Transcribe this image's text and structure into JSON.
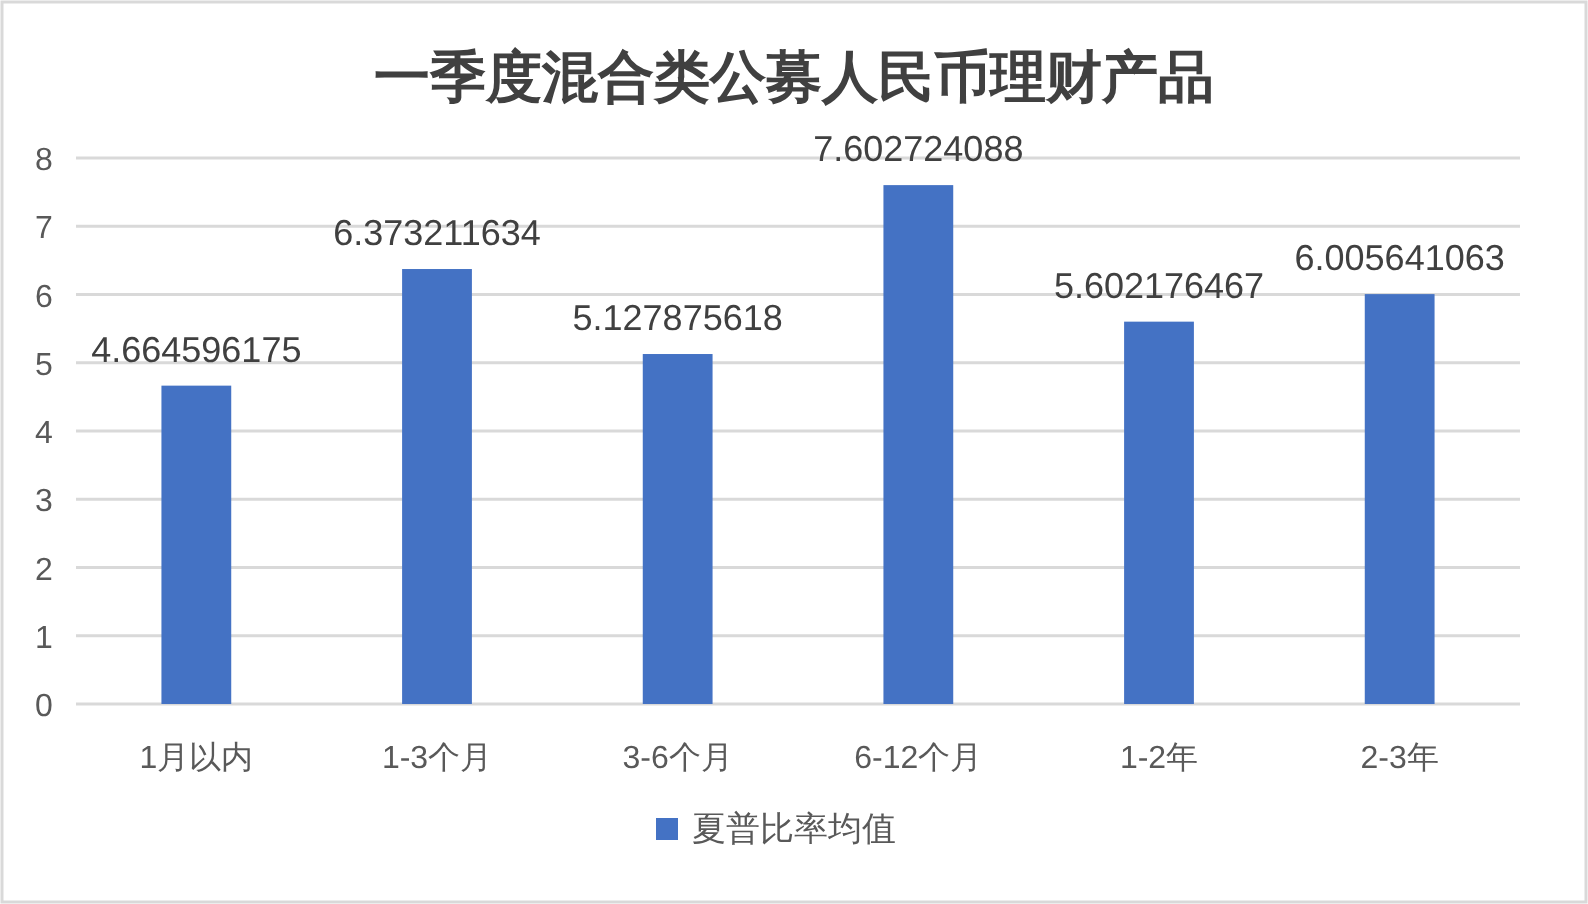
{
  "chart_data": {
    "type": "bar",
    "title": "一季度混合类公募人民币理财产品",
    "categories": [
      "1月以内",
      "1-3个月",
      "3-6个月",
      "6-12个月",
      "1-2年",
      "2-3年"
    ],
    "series": [
      {
        "name": "夏普比率均值",
        "color": "#4472c4",
        "values": [
          4.664596175,
          6.373211634,
          5.127875618,
          7.602724088,
          5.602176467,
          6.005641063
        ]
      }
    ],
    "ylim": [
      0,
      8
    ],
    "yticks": [
      0,
      1,
      2,
      3,
      4,
      5,
      6,
      7,
      8
    ],
    "grid": "y",
    "legend": "bottom",
    "data_labels": true
  }
}
